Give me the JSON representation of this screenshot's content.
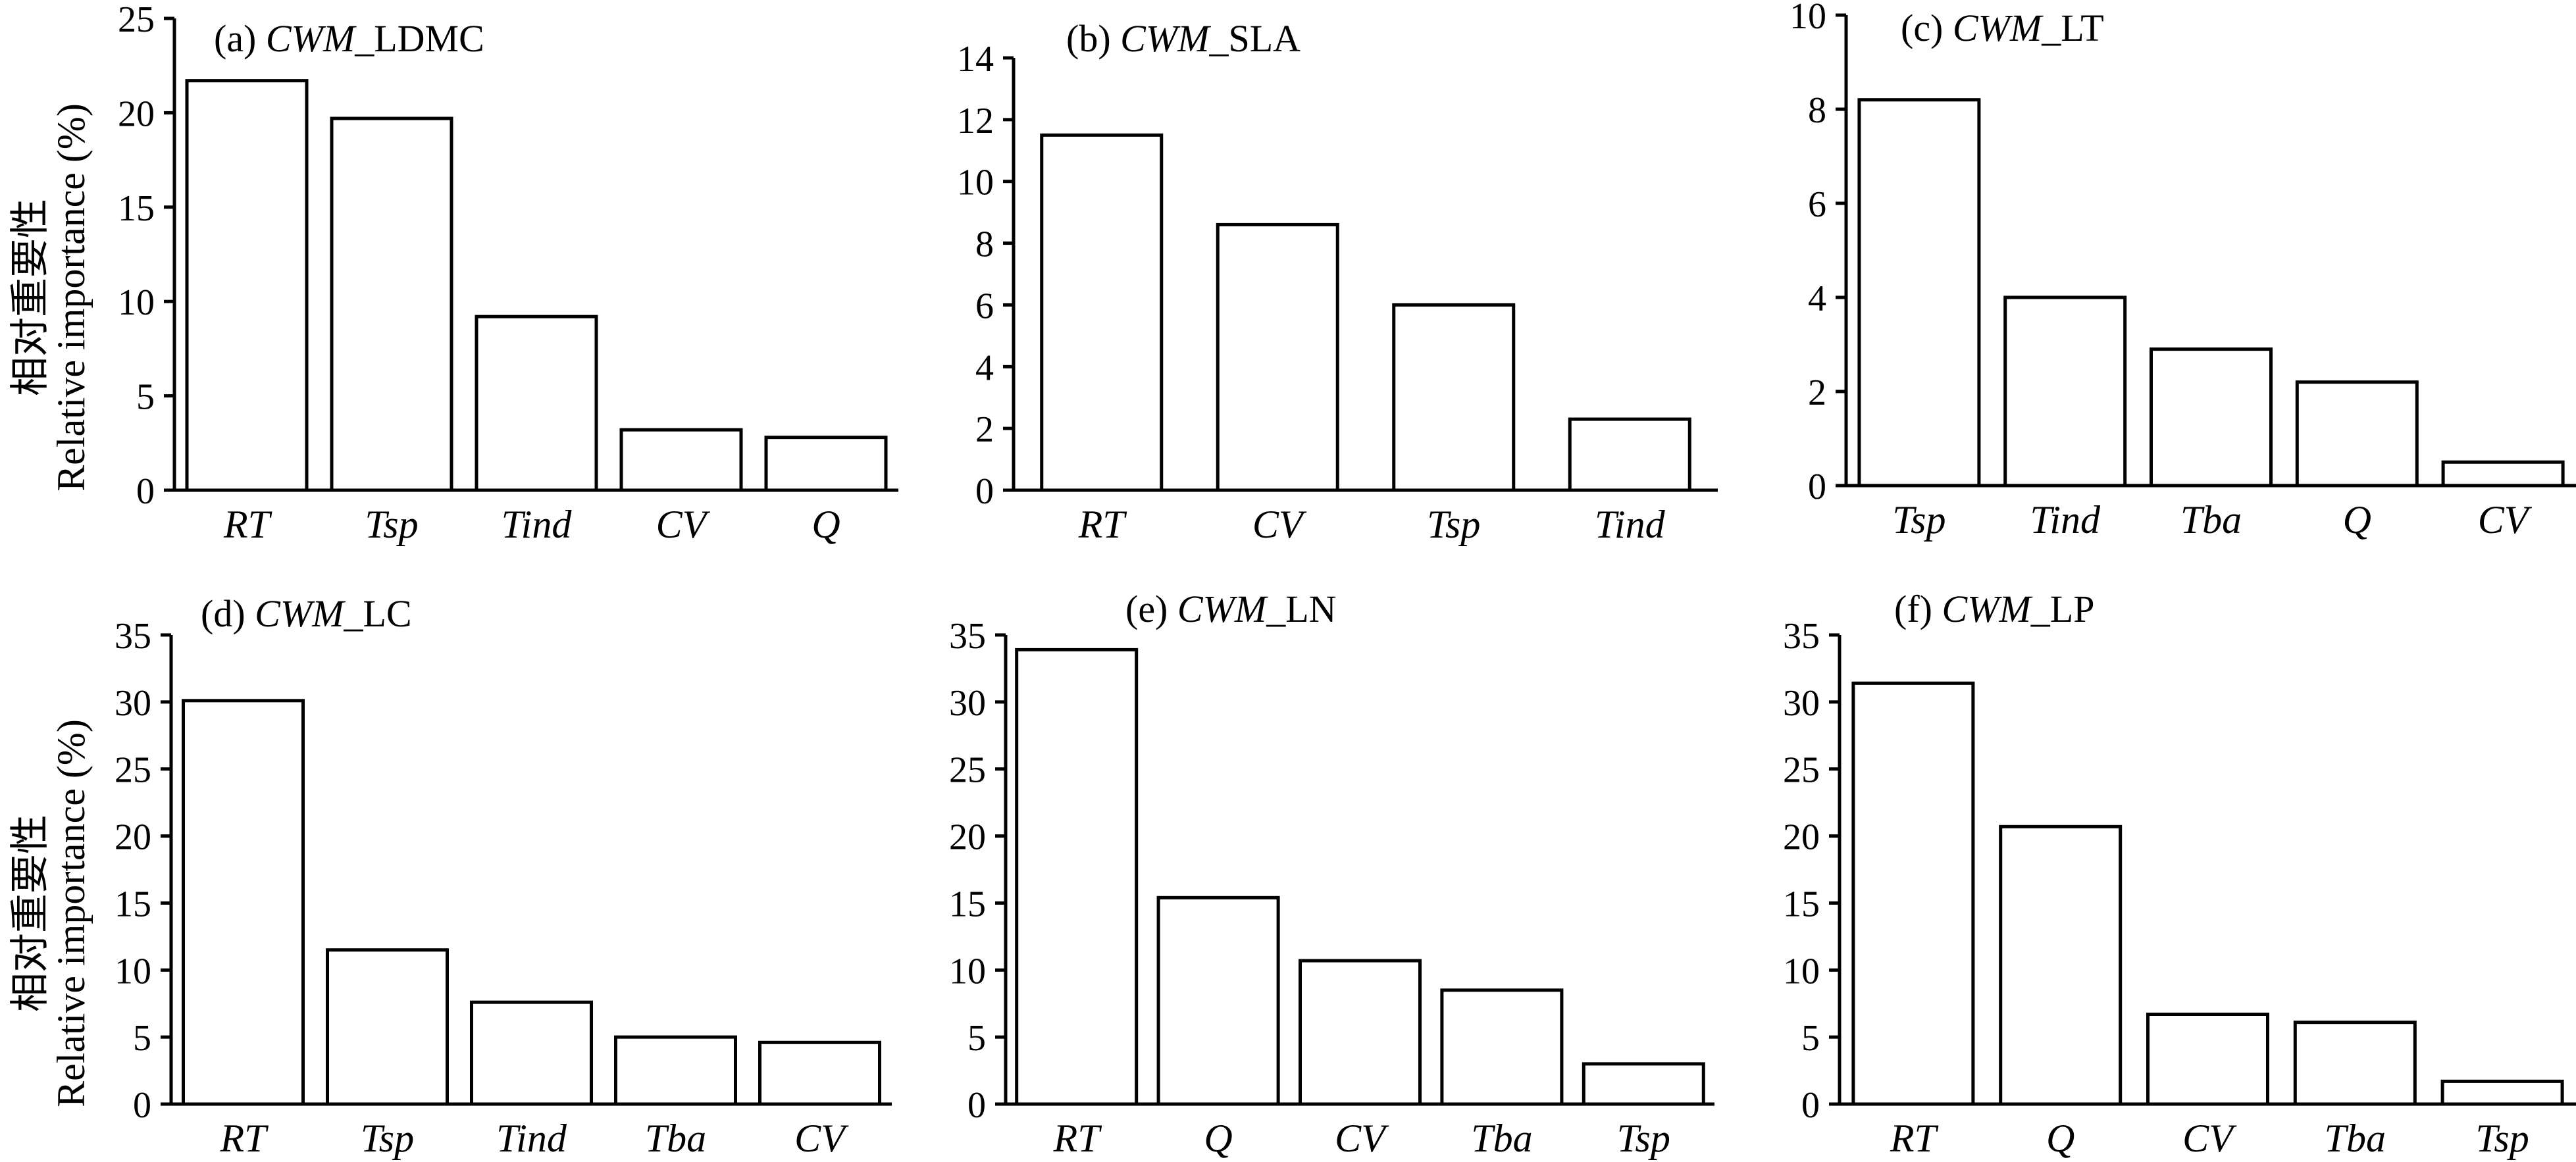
{
  "figure": {
    "ylabel_cn": "相对重要性",
    "ylabel_en": "Relative importance (%)"
  },
  "chart_data": [
    {
      "type": "bar",
      "title_prefix": "(a) ",
      "title_italic": "CWM",
      "title_suffix": "_LDMC",
      "categories": [
        "RT",
        "Tsp",
        "Tind",
        "CV",
        "Q"
      ],
      "values": [
        21.7,
        19.7,
        9.2,
        3.2,
        2.8
      ],
      "ylim": [
        0,
        25
      ],
      "yticks": [
        0,
        5,
        10,
        15,
        20,
        25
      ],
      "ylabel": "相对重要性 Relative importance (%)"
    },
    {
      "type": "bar",
      "title_prefix": "(b) ",
      "title_italic": "CWM",
      "title_suffix": "_SLA",
      "categories": [
        "RT",
        "CV",
        "Tsp",
        "Tind"
      ],
      "values": [
        11.5,
        8.6,
        6.0,
        2.3
      ],
      "ylim": [
        0,
        14
      ],
      "yticks": [
        0,
        2,
        4,
        6,
        8,
        10,
        12,
        14
      ]
    },
    {
      "type": "bar",
      "title_prefix": "(c) ",
      "title_italic": "CWM",
      "title_suffix": "_LT",
      "categories": [
        "Tsp",
        "Tind",
        "Tba",
        "Q",
        "CV"
      ],
      "values": [
        8.2,
        4.0,
        2.9,
        2.2,
        0.5
      ],
      "ylim": [
        0,
        10
      ],
      "yticks": [
        0,
        2,
        4,
        6,
        8,
        10
      ]
    },
    {
      "type": "bar",
      "title_prefix": "(d) ",
      "title_italic": "CWM",
      "title_suffix": "_LC",
      "categories": [
        "RT",
        "Tsp",
        "Tind",
        "Tba",
        "CV"
      ],
      "values": [
        30.1,
        11.5,
        7.6,
        5.0,
        4.6
      ],
      "ylim": [
        0,
        35
      ],
      "yticks": [
        0,
        5,
        10,
        15,
        20,
        25,
        30,
        35
      ],
      "ylabel": "相对重要性 Relative importance (%)"
    },
    {
      "type": "bar",
      "title_prefix": "(e) ",
      "title_italic": "CWM",
      "title_suffix": "_LN",
      "categories": [
        "RT",
        "Q",
        "CV",
        "Tba",
        "Tsp"
      ],
      "values": [
        33.9,
        15.4,
        10.7,
        8.5,
        3.0
      ],
      "ylim": [
        0,
        35
      ],
      "yticks": [
        0,
        5,
        10,
        15,
        20,
        25,
        30,
        35
      ]
    },
    {
      "type": "bar",
      "title_prefix": "(f) ",
      "title_italic": "CWM",
      "title_suffix": "_LP",
      "categories": [
        "RT",
        "Q",
        "CV",
        "Tba",
        "Tsp"
      ],
      "values": [
        31.4,
        20.7,
        6.7,
        6.1,
        1.7
      ],
      "ylim": [
        0,
        35
      ],
      "yticks": [
        0,
        5,
        10,
        15,
        20,
        25,
        30,
        35
      ]
    }
  ]
}
